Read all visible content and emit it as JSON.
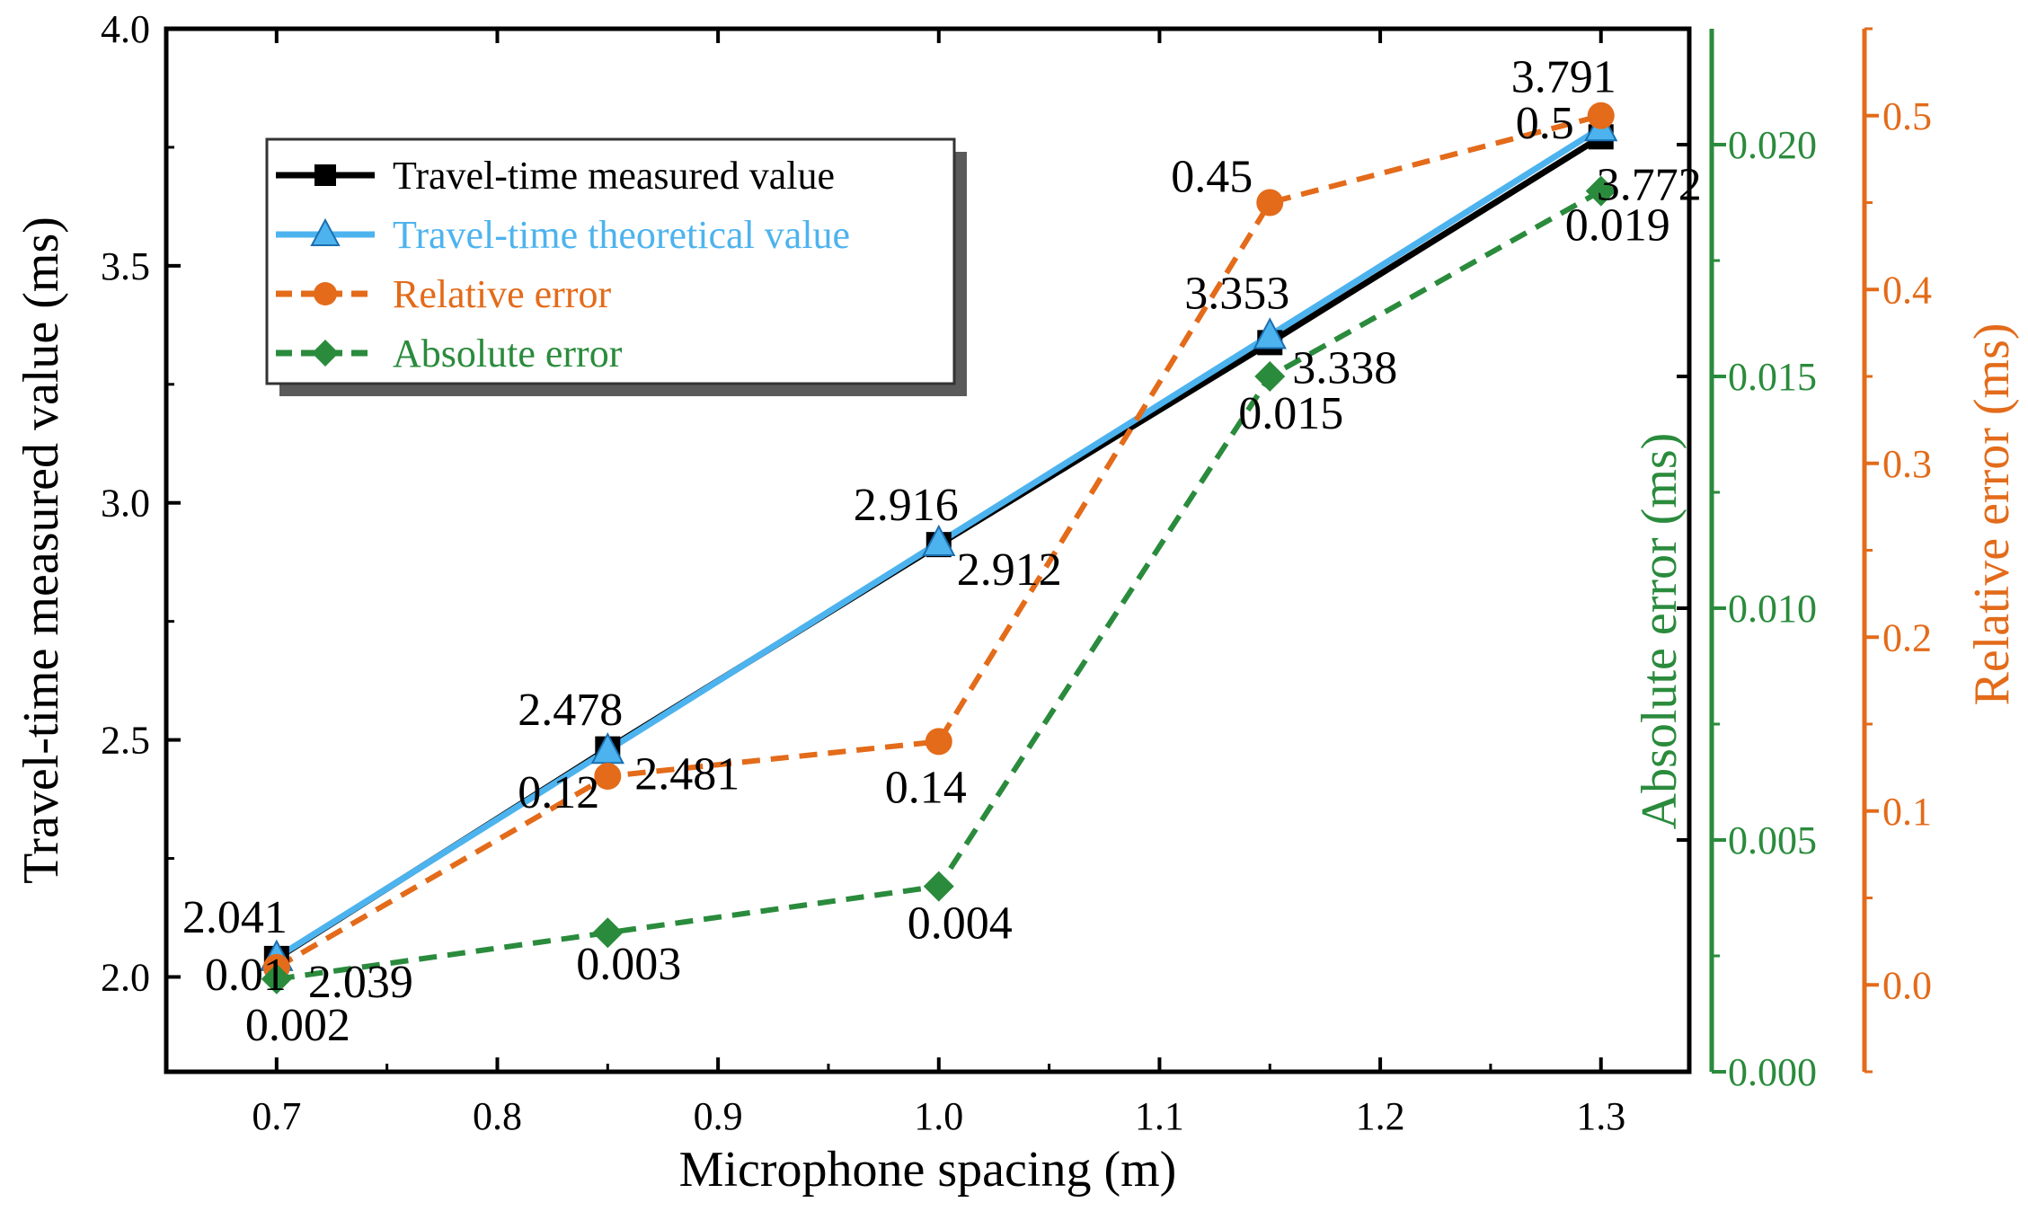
{
  "chart_data": {
    "type": "line",
    "xlabel": "Microphone spacing (m)",
    "ylabel_left": "Travel-time measured value (ms)",
    "ylabel_right_1": "Absolute error (ms)",
    "ylabel_right_2": "Relative error (ms)",
    "x": [
      0.7,
      0.85,
      1.0,
      1.15,
      1.3
    ],
    "xlim": [
      0.65,
      1.34
    ],
    "x_ticks": [
      0.7,
      0.8,
      0.9,
      1.0,
      1.1,
      1.2,
      1.3
    ],
    "x_tick_labels": [
      "0.7",
      "0.8",
      "0.9",
      "1.0",
      "1.1",
      "1.2",
      "1.3"
    ],
    "ylim_left": [
      1.8,
      4.0
    ],
    "y_left_ticks": [
      2.0,
      2.5,
      3.0,
      3.5,
      4.0
    ],
    "y_left_tick_labels": [
      "2.0",
      "2.5",
      "3.0",
      "3.5",
      "4.0"
    ],
    "ylim_abs": [
      0.0,
      0.0225
    ],
    "y_abs_ticks": [
      0.0,
      0.005,
      0.01,
      0.015,
      0.02
    ],
    "y_abs_tick_labels": [
      "0.000",
      "0.005",
      "0.010",
      "0.015",
      "0.020"
    ],
    "ylim_rel": [
      -0.05,
      0.55
    ],
    "y_rel_ticks": [
      0.0,
      0.1,
      0.2,
      0.3,
      0.4,
      0.5
    ],
    "y_rel_tick_labels": [
      "0.0",
      "0.1",
      "0.2",
      "0.3",
      "0.4",
      "0.5"
    ],
    "series": [
      {
        "name": "Travel-time measured value",
        "axis": "left",
        "color": "#000000",
        "marker": "square",
        "line": "solid",
        "values": [
          2.039,
          2.481,
          2.912,
          3.338,
          3.772
        ],
        "labels": [
          "2.039",
          "2.481",
          "2.912",
          "3.338",
          "3.772"
        ]
      },
      {
        "name": "Travel-time theoretical value",
        "axis": "left",
        "color": "#4db3ee",
        "marker": "triangle",
        "line": "solid",
        "values": [
          2.041,
          2.478,
          2.916,
          3.353,
          3.791
        ],
        "labels": [
          "2.041",
          "2.478",
          "2.916",
          "3.353",
          "3.791"
        ]
      },
      {
        "name": "Relative error",
        "axis": "rel",
        "color": "#e36b1a",
        "marker": "circle",
        "line": "dashed",
        "values": [
          0.01,
          0.12,
          0.14,
          0.45,
          0.5
        ],
        "labels": [
          "0.01",
          "0.12",
          "0.14",
          "0.45",
          "0.5"
        ]
      },
      {
        "name": "Absolute error",
        "axis": "abs",
        "color": "#2a8b3c",
        "marker": "diamond",
        "line": "dashed",
        "values": [
          0.002,
          0.003,
          0.004,
          0.015,
          0.019
        ],
        "labels": [
          "0.002",
          "0.003",
          "0.004",
          "0.015",
          "0.019"
        ]
      }
    ],
    "colors": {
      "axis_left": "#000000",
      "axis_abs": "#2a8b3c",
      "axis_rel": "#e36b1a"
    },
    "legend_position": "top-left"
  }
}
